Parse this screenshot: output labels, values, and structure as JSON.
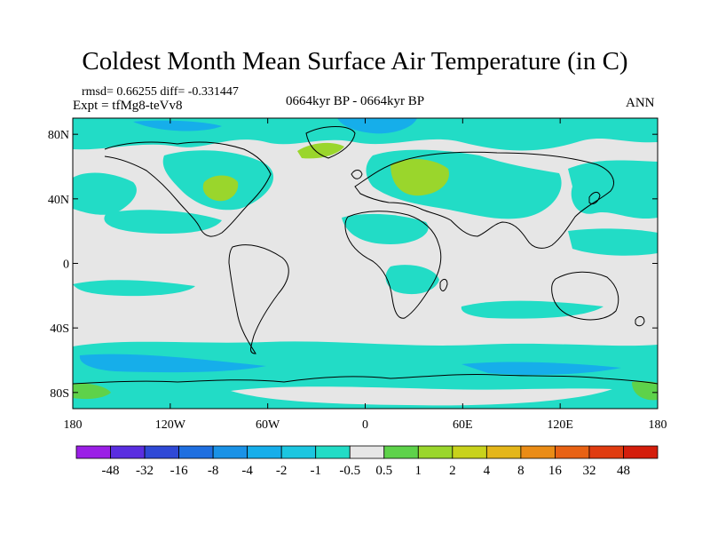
{
  "map": {
    "title": "Coldest Month Mean Surface Air Temperature (in C)",
    "stats": "rmsd= 0.66255  diff= -0.331447",
    "experiment": "Expt = tfMg8-teVv8",
    "center_label": "0664kyr BP - 0664kyr BP",
    "right_label": "ANN",
    "lat_ticks": [
      {
        "lat": 80,
        "label": "80N"
      },
      {
        "lat": 40,
        "label": "40N"
      },
      {
        "lat": 0,
        "label": "0"
      },
      {
        "lat": -40,
        "label": "40S"
      },
      {
        "lat": -80,
        "label": "80S"
      }
    ],
    "lon_ticks": [
      {
        "lon": -180,
        "label": "180"
      },
      {
        "lon": -120,
        "label": "120W"
      },
      {
        "lon": -60,
        "label": "60W"
      },
      {
        "lon": 0,
        "label": "0"
      },
      {
        "lon": 60,
        "label": "60E"
      },
      {
        "lon": 120,
        "label": "120E"
      },
      {
        "lon": 180,
        "label": "180"
      }
    ]
  },
  "colorbar": {
    "labels": [
      "-48",
      "-32",
      "-16",
      "-8",
      "-4",
      "-2",
      "-1",
      "-0.5",
      "0.5",
      "1",
      "2",
      "4",
      "8",
      "16",
      "32",
      "48"
    ],
    "colors": [
      "#9b1fe6",
      "#5a2ee0",
      "#2f49d6",
      "#1f6fe0",
      "#1a92e6",
      "#16aeea",
      "#1cc6e0",
      "#22dcc6",
      "#e6e6e6",
      "#5ed24a",
      "#9ad62c",
      "#c8d21c",
      "#e4b61a",
      "#ea8c16",
      "#e86214",
      "#e03c10",
      "#d41e0c"
    ]
  }
}
